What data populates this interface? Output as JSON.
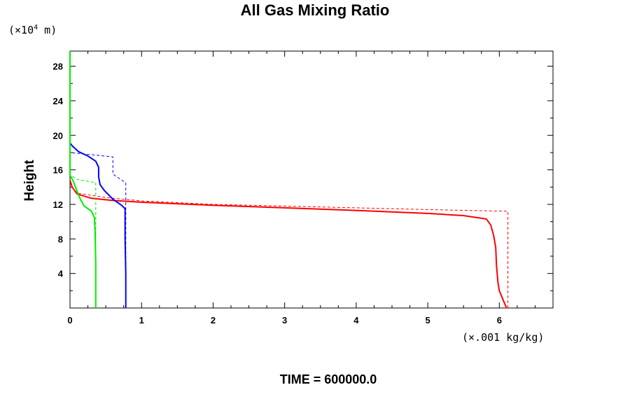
{
  "chart_data": {
    "type": "line",
    "title": "All Gas Mixing Ratio",
    "xlabel": "",
    "ylabel": "Height",
    "x_units": "(×.001 kg/kg)",
    "y_units_prefix": "(×10",
    "y_units_exp": "4",
    "y_units_suffix": " m)",
    "footer": "TIME = 600000.0",
    "xlim": [
      0,
      6.75
    ],
    "ylim": [
      0,
      29.75
    ],
    "x_ticks": [
      0,
      1,
      2,
      3,
      4,
      5,
      6
    ],
    "x_tick_labels": [
      "0",
      "1",
      "2",
      "3",
      "4",
      "5",
      "6"
    ],
    "y_ticks": [
      4,
      8,
      12,
      16,
      20,
      24,
      28
    ],
    "y_tick_labels": [
      "4",
      "8",
      "12",
      "16",
      "20",
      "24",
      "28"
    ],
    "grid": false,
    "series": [
      {
        "color": "#ff0000",
        "style": "solid",
        "points": [
          [
            6.1,
            0
          ],
          [
            6.05,
            1
          ],
          [
            6.0,
            2
          ],
          [
            5.98,
            3
          ],
          [
            5.96,
            5
          ],
          [
            5.95,
            7
          ],
          [
            5.92,
            8.4
          ],
          [
            5.88,
            9.6
          ],
          [
            5.82,
            10.3
          ],
          [
            5.5,
            10.7
          ],
          [
            5.0,
            10.95
          ],
          [
            4.0,
            11.3
          ],
          [
            3.0,
            11.6
          ],
          [
            2.0,
            11.9
          ],
          [
            1.0,
            12.25
          ],
          [
            0.6,
            12.45
          ],
          [
            0.3,
            12.7
          ],
          [
            0.1,
            13.2
          ],
          [
            0.03,
            14
          ],
          [
            0.0,
            14.8
          ]
        ]
      },
      {
        "color": "#ff0000",
        "style": "dashed",
        "points": [
          [
            6.12,
            0
          ],
          [
            6.12,
            11.2
          ],
          [
            5.0,
            11.4
          ],
          [
            4.0,
            11.6
          ],
          [
            3.0,
            11.8
          ],
          [
            2.0,
            12.0
          ],
          [
            1.0,
            12.4
          ],
          [
            0.5,
            12.8
          ],
          [
            0.1,
            13.3
          ],
          [
            0.0,
            14.2
          ]
        ]
      },
      {
        "color": "#0000ff",
        "style": "solid",
        "points": [
          [
            0.78,
            0
          ],
          [
            0.78,
            4
          ],
          [
            0.77,
            8
          ],
          [
            0.77,
            11.5
          ],
          [
            0.72,
            11.9
          ],
          [
            0.6,
            12.6
          ],
          [
            0.48,
            13.6
          ],
          [
            0.42,
            14.3
          ],
          [
            0.4,
            15.2
          ],
          [
            0.4,
            16.3
          ],
          [
            0.36,
            17.0
          ],
          [
            0.25,
            17.6
          ],
          [
            0.12,
            18.1
          ],
          [
            0.04,
            18.7
          ],
          [
            0.0,
            19.1
          ]
        ]
      },
      {
        "color": "#0000ff",
        "style": "dashed",
        "points": [
          [
            0.78,
            0
          ],
          [
            0.78,
            14.5
          ],
          [
            0.6,
            15.5
          ],
          [
            0.6,
            17.5
          ],
          [
            0.0,
            18.0
          ]
        ]
      },
      {
        "color": "#00ee00",
        "style": "solid",
        "points": [
          [
            0.36,
            0
          ],
          [
            0.36,
            5
          ],
          [
            0.35,
            9
          ],
          [
            0.34,
            10.5
          ],
          [
            0.3,
            11.2
          ],
          [
            0.2,
            11.8
          ],
          [
            0.15,
            12.5
          ],
          [
            0.1,
            13.5
          ],
          [
            0.05,
            14.6
          ],
          [
            0.0,
            15.4
          ],
          [
            0.0,
            29.75
          ]
        ]
      },
      {
        "color": "#00ee00",
        "style": "dashed",
        "points": [
          [
            0.36,
            0
          ],
          [
            0.36,
            14.5
          ],
          [
            0.1,
            14.9
          ],
          [
            0.0,
            15.4
          ]
        ]
      }
    ]
  }
}
